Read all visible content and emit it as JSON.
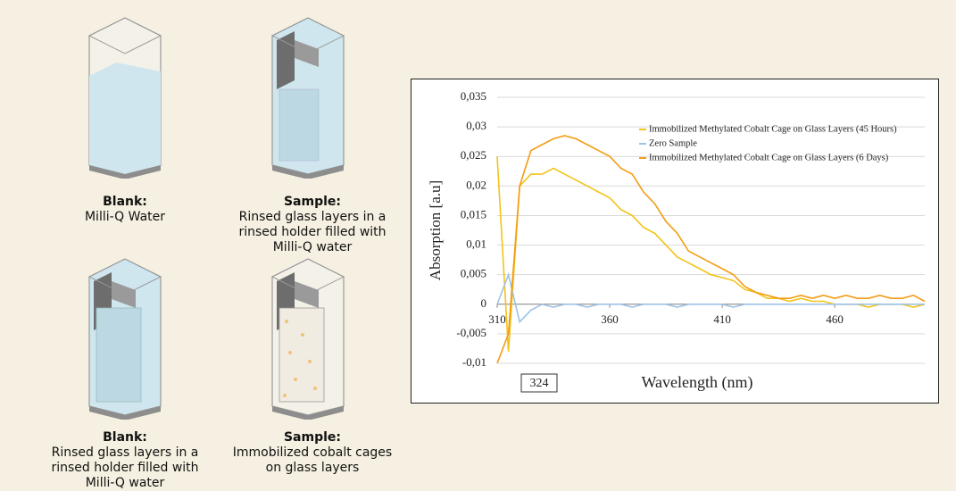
{
  "cuvettes": [
    {
      "title": "Blank:",
      "text": "Milli-Q Water"
    },
    {
      "title": "Sample:",
      "text": "Rinsed glass layers in a rinsed holder filled with Milli-Q water"
    },
    {
      "title": "Blank:",
      "text": "Rinsed glass layers in a rinsed holder filled with Milli-Q water"
    },
    {
      "title": "Sample:",
      "text": "Immobilized cobalt cages on glass layers"
    }
  ],
  "chart_data": {
    "type": "line",
    "x_label": "Wavelength (nm)",
    "y_label": "Absorption [a.u]",
    "annotation": "324",
    "x": [
      310,
      315,
      320,
      325,
      330,
      335,
      340,
      345,
      350,
      355,
      360,
      365,
      370,
      375,
      380,
      385,
      390,
      395,
      400,
      405,
      410,
      415,
      420,
      425,
      430,
      435,
      440,
      445,
      450,
      455,
      460,
      465,
      470,
      475,
      480,
      485,
      490,
      495,
      500
    ],
    "series": [
      {
        "name": "Immobilized Methylated Cobalt Cage on Glass Layers (45 Hours)",
        "color": "#f2c31a",
        "values": [
          0.025,
          -0.008,
          0.02,
          0.022,
          0.022,
          0.023,
          0.022,
          0.021,
          0.02,
          0.019,
          0.018,
          0.016,
          0.015,
          0.013,
          0.012,
          0.01,
          0.008,
          0.007,
          0.006,
          0.005,
          0.0045,
          0.004,
          0.0025,
          0.002,
          0.001,
          0.001,
          0.0005,
          0.001,
          0.0005,
          0.0005,
          0,
          0,
          0,
          -0.0005,
          0,
          0,
          0,
          -0.0005,
          0
        ]
      },
      {
        "name": "Zero Sample",
        "color": "#9dc3e6",
        "values": [
          0,
          0.005,
          -0.003,
          -0.001,
          0,
          -0.0005,
          0,
          0,
          -0.0005,
          0,
          0,
          0,
          -0.0005,
          0,
          0,
          0,
          -0.0005,
          0,
          0,
          0,
          0,
          -0.0005,
          0,
          0,
          0,
          0,
          0,
          0,
          0,
          0,
          0,
          0,
          0,
          0,
          0,
          0,
          0,
          0,
          0
        ]
      },
      {
        "name": "Immobilized Methylated Cobalt Cage on Glass Layers (6 Days)",
        "color": "#f39c12",
        "values": [
          -0.01,
          -0.005,
          0.02,
          0.026,
          0.027,
          0.028,
          0.0285,
          0.028,
          0.027,
          0.026,
          0.025,
          0.023,
          0.022,
          0.019,
          0.017,
          0.014,
          0.012,
          0.009,
          0.008,
          0.007,
          0.006,
          0.005,
          0.003,
          0.002,
          0.0015,
          0.001,
          0.001,
          0.0015,
          0.001,
          0.0015,
          0.001,
          0.0015,
          0.001,
          0.001,
          0.0015,
          0.001,
          0.001,
          0.0015,
          0.0005
        ]
      }
    ],
    "xlim": [
      310,
      500
    ],
    "ylim": [
      -0.01,
      0.035
    ],
    "xticks": [
      310,
      360,
      410,
      460
    ],
    "yticks": [
      {
        "value": -0.01,
        "label": "-0,01"
      },
      {
        "value": -0.005,
        "label": "-0,005"
      },
      0,
      {
        "value": 0.005,
        "label": "0,005"
      },
      {
        "value": 0.01,
        "label": "0,01"
      },
      {
        "value": 0.015,
        "label": "0,015"
      },
      {
        "value": 0.02,
        "label": "0,02"
      },
      {
        "value": 0.025,
        "label": "0,025"
      },
      {
        "value": 0.03,
        "label": "0,03"
      },
      {
        "value": 0.035,
        "label": "0,035"
      }
    ],
    "grid": true,
    "legend": "top-right"
  }
}
